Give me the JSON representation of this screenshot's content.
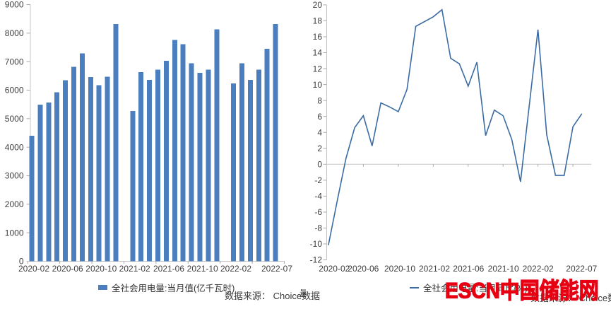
{
  "watermark": {
    "text": "ESCN中国储能网",
    "color": "#e60012"
  },
  "stray_glyph": "量",
  "chart_data": [
    {
      "type": "bar",
      "title": "",
      "legend": "全社会用电量:当月值(亿千瓦时)",
      "source": "数据来源： Choice数据",
      "unit": "亿千瓦时",
      "bar_color": "#4b7ebe",
      "ylim": [
        0,
        9000
      ],
      "grid": false,
      "legend_position": "bottom",
      "y_ticks": [
        0,
        1000,
        2000,
        3000,
        4000,
        5000,
        6000,
        7000,
        8000,
        9000
      ],
      "x_tick_labels": [
        "2020-02",
        "2020-06",
        "2020-10",
        "2021-02",
        "2021-06",
        "2021-10",
        "2022-02",
        "2022-07"
      ],
      "x": [
        "2020-02",
        "2020-03",
        "2020-04",
        "2020-05",
        "2020-06",
        "2020-07",
        "2020-08",
        "2020-09",
        "2020-10",
        "2020-11",
        "2020-12",
        "2021-02",
        "2021-03",
        "2021-04",
        "2021-05",
        "2021-06",
        "2021-07",
        "2021-08",
        "2021-09",
        "2021-10",
        "2021-11",
        "2021-12",
        "2022-02",
        "2022-03",
        "2022-04",
        "2022-05",
        "2022-06",
        "2022-07"
      ],
      "values": [
        4398,
        5493,
        5572,
        5926,
        6350,
        6824,
        7294,
        6454,
        6172,
        6467,
        8315,
        5265,
        6631,
        6361,
        6724,
        7033,
        7758,
        7607,
        6947,
        6603,
        6718,
        8135,
        6235,
        6944,
        6362,
        6716,
        7451,
        8324
      ]
    },
    {
      "type": "line",
      "title": "",
      "legend": "全社会用电量:当月同比(%)",
      "source": "数据来源： Choice数据",
      "unit": "%",
      "line_color": "#3a6ba3",
      "ylim": [
        -12,
        20
      ],
      "grid": false,
      "legend_position": "bottom",
      "y_ticks": [
        20,
        18,
        16,
        14,
        12,
        10,
        8,
        6,
        4,
        2,
        0,
        -2,
        -4,
        -6,
        -8,
        -10,
        -12
      ],
      "x_tick_labels": [
        "2020-02",
        "2020-06",
        "2020-10",
        "2021-02",
        "2021-06",
        "2021-10",
        "2022-02",
        "2022-07"
      ],
      "x": [
        "2020-02",
        "2020-03",
        "2020-04",
        "2020-05",
        "2020-06",
        "2020-07",
        "2020-08",
        "2020-09",
        "2020-10",
        "2020-11",
        "2020-12",
        "2021-02",
        "2021-03",
        "2021-04",
        "2021-05",
        "2021-06",
        "2021-07",
        "2021-08",
        "2021-09",
        "2021-10",
        "2021-11",
        "2021-12",
        "2022-02",
        "2022-03",
        "2022-04",
        "2022-05",
        "2022-06",
        "2022-07"
      ],
      "values": [
        -10.1,
        -4.6,
        0.7,
        4.6,
        6.1,
        2.3,
        7.7,
        7.2,
        6.6,
        9.4,
        17.3,
        18.5,
        19.4,
        13.3,
        12.6,
        9.8,
        12.8,
        3.6,
        6.8,
        6.1,
        3.1,
        -2.2,
        16.9,
        3.7,
        -1.4,
        -1.4,
        4.7,
        6.3
      ]
    }
  ]
}
